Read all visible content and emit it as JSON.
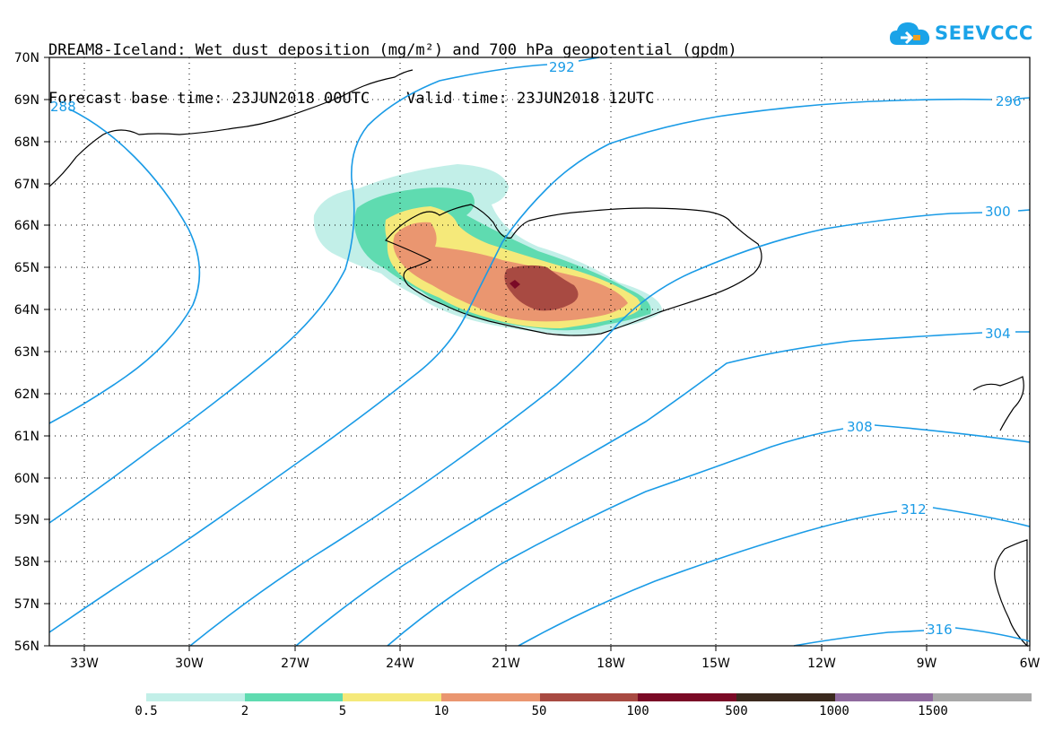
{
  "title": {
    "line1": "DREAM8-Iceland: Wet dust deposition (mg/m²) and 700 hPa geopotential (gpdm)",
    "line2": "Forecast base time: 23JUN2018 00UTC    Valid time: 23JUN2018 12UTC"
  },
  "logo": {
    "text": "SEEVCCC",
    "icon": "cloud-icon"
  },
  "axes": {
    "lat_labels": [
      "70N",
      "69N",
      "68N",
      "67N",
      "66N",
      "65N",
      "64N",
      "63N",
      "62N",
      "61N",
      "60N",
      "59N",
      "58N",
      "57N",
      "56N"
    ],
    "lon_labels": [
      "33W",
      "30W",
      "27W",
      "24W",
      "21W",
      "18W",
      "15W",
      "12W",
      "9W",
      "6W"
    ]
  },
  "contours": {
    "color": "#1a9be6",
    "labels": [
      "292",
      "296",
      "300",
      "304",
      "308",
      "312",
      "316",
      "288"
    ]
  },
  "legend": {
    "colors": [
      "#c2efe8",
      "#5fdbb0",
      "#f5e97a",
      "#ea9670",
      "#a84a42",
      "#7a0a26",
      "#3b2a1e",
      "#8f6a9e",
      "#a8a8a8"
    ],
    "labels": [
      "0.5",
      "2",
      "5",
      "10",
      "50",
      "100",
      "500",
      "1000",
      "1500"
    ]
  }
}
